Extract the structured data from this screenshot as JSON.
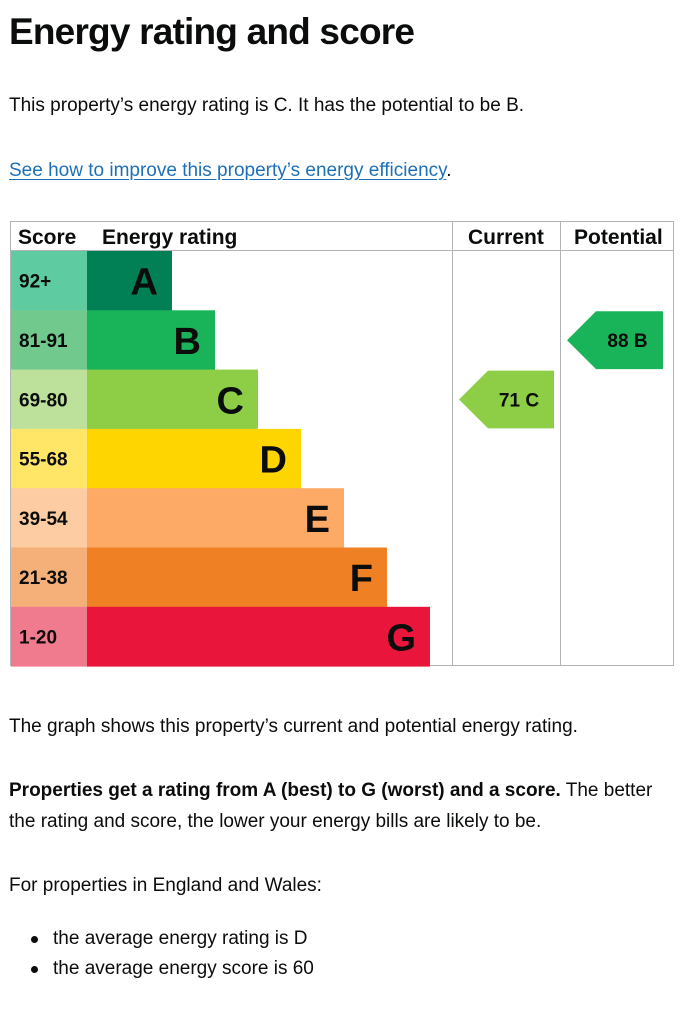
{
  "heading": "Energy rating and score",
  "intro": "This property’s energy rating is C. It has the potential to be B.",
  "improve_link": {
    "text": "See how to improve this property’s energy efficiency",
    "suffix": "."
  },
  "chart": {
    "headers": {
      "score": "Score",
      "rating": "Energy rating",
      "current": "Current",
      "potential": "Potential"
    },
    "bands": [
      {
        "score": "92+",
        "letter": "A",
        "color": "#008054",
        "score_bg": "#5fcba0"
      },
      {
        "score": "81-91",
        "letter": "B",
        "color": "#19b459",
        "score_bg": "#72c98d"
      },
      {
        "score": "69-80",
        "letter": "C",
        "color": "#8dce46",
        "score_bg": "#bde09a"
      },
      {
        "score": "55-68",
        "letter": "D",
        "color": "#ffd500",
        "score_bg": "#ffe666"
      },
      {
        "score": "39-54",
        "letter": "E",
        "color": "#fcaa65",
        "score_bg": "#fdcca2"
      },
      {
        "score": "21-38",
        "letter": "F",
        "color": "#ef8023",
        "score_bg": "#f5b079"
      },
      {
        "score": "1-20",
        "letter": "G",
        "color": "#e9153b",
        "score_bg": "#f07a8e"
      }
    ],
    "current": {
      "score": 71,
      "letter": "C",
      "label": "71  C",
      "color": "#8dce46"
    },
    "potential": {
      "score": 88,
      "letter": "B",
      "label": "88  B",
      "color": "#19b459"
    }
  },
  "graph_explanation": "The graph shows this property’s current and potential energy rating.",
  "properties_info": {
    "bold": "Properties get a rating from A (best) to G (worst) and a score.",
    "rest": " The better the rating and score, the lower your energy bills are likely to be."
  },
  "england_wales": "For properties in England and Wales:",
  "averages": [
    "the average energy rating is D",
    "the average energy score is 60"
  ]
}
